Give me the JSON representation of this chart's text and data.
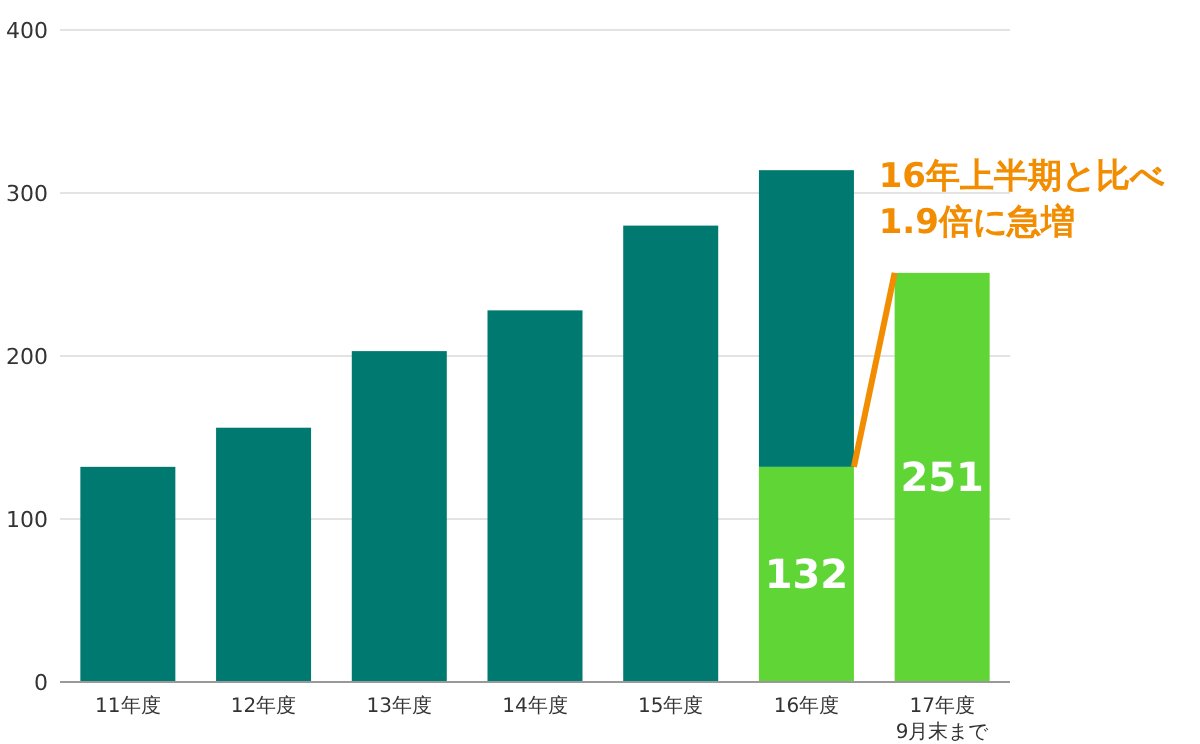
{
  "chart_data": {
    "type": "bar",
    "stacked": true,
    "categories": [
      "11年度",
      "12年度",
      "13年度",
      "14年度",
      "15年度",
      "16年度",
      "17年度\n9月末まで"
    ],
    "series": [
      {
        "color": "#5fd636",
        "values": [
          null,
          null,
          null,
          null,
          null,
          132,
          251
        ],
        "value_labels": [
          null,
          null,
          null,
          null,
          null,
          "132",
          "251"
        ]
      },
      {
        "color": "#007a70",
        "values": [
          132,
          156,
          203,
          228,
          280,
          182,
          null
        ]
      }
    ],
    "ylim": [
      0,
      400
    ],
    "yticks": [
      0,
      100,
      200,
      300,
      400
    ],
    "grid": "y",
    "annotations": [
      {
        "text": "16年上半期と比べ\n1.9倍に急増",
        "x": "17年度\n9月末まで",
        "y": 251
      }
    ]
  }
}
